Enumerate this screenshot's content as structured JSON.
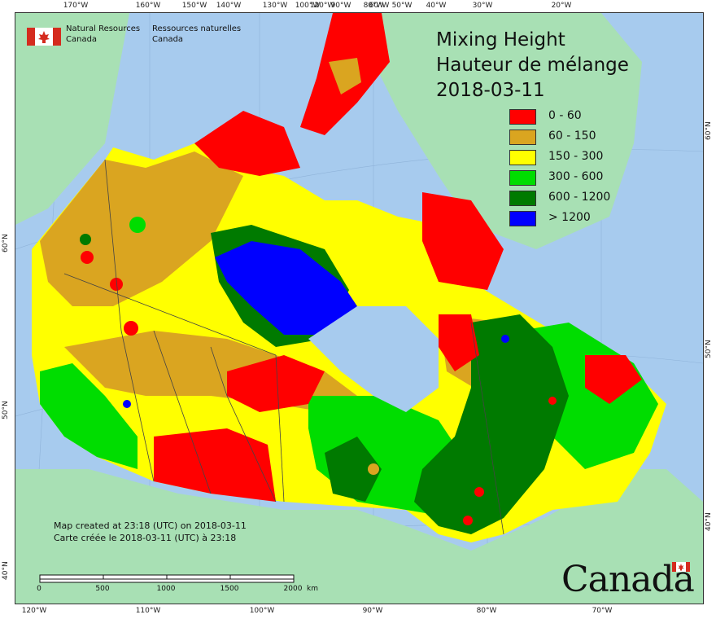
{
  "title": {
    "line1": "Mixing Height",
    "line2": "Hauteur de mélange",
    "date": "2018-03-11"
  },
  "agency": {
    "en_line1": "Natural Resources",
    "en_line2": "Canada",
    "fr_line1": "Ressources naturelles",
    "fr_line2": "Canada"
  },
  "legend": [
    {
      "label": "0 - 60",
      "color": "#ff0000"
    },
    {
      "label": "60 - 150",
      "color": "#daa520"
    },
    {
      "label": "150 - 300",
      "color": "#ffff00"
    },
    {
      "label": "300 - 600",
      "color": "#00dd00"
    },
    {
      "label": "600 - 1200",
      "color": "#007a00"
    },
    {
      "label": "> 1200",
      "color": "#0000ff"
    }
  ],
  "credits": {
    "en": "Map created at 23:18 (UTC) on 2018-03-11",
    "fr": "Carte créée le 2018-03-11 (UTC) à 23:18"
  },
  "scalebar": {
    "labels": [
      "0",
      "500",
      "1000",
      "1500",
      "2000"
    ],
    "unit": "km"
  },
  "axis_labels": {
    "top": [
      "170°W",
      "160°W",
      "150°W",
      "140°W",
      "130°W",
      "120°W",
      "100°W",
      "90°W",
      "80°W",
      "60°W",
      "50°W",
      "40°W",
      "30°W",
      "20°W"
    ],
    "bottom": [
      "120°W",
      "110°W",
      "100°W",
      "90°W",
      "80°W",
      "70°W"
    ],
    "left": [
      "60°N",
      "50°N",
      "40°N"
    ],
    "right": [
      "60°N",
      "50°N",
      "40°N"
    ]
  },
  "wordmark": "Canada",
  "colors": {
    "ocean": "#a7cbee",
    "land_other": "#a8e0b4",
    "water_inland": "#a7cbee"
  }
}
